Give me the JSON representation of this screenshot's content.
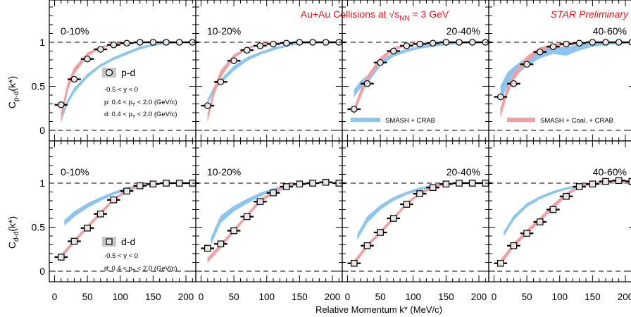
{
  "header": {
    "title_prefix": "Au+Au Collisions at ",
    "title_sqrt_s": "√s",
    "title_sub": "NN",
    "title_suffix": " = 3 GeV",
    "preliminary": "STAR Preliminary"
  },
  "axes": {
    "xlabel": "Relative Momentum k* (MeV/c)",
    "xticks": [
      "0",
      "50",
      "100",
      "150",
      "200"
    ],
    "row_ylabels": [
      {
        "main": "C",
        "sub": "p-d",
        "tail": "(k*)"
      },
      {
        "main": "C",
        "sub": "d-d",
        "tail": "(k*)"
      }
    ],
    "yticks": [
      "0",
      "0.5",
      "1"
    ]
  },
  "legend": {
    "pd": {
      "label": "p-d",
      "cut_y": "-0.5 < y < 0",
      "cut_p_a": "p: 0.4 < p",
      "cut_p_sub": "T",
      "cut_p_b": " < 2.0 (GeV/c)",
      "cut_d_a": "d: 0.4 < p",
      "cut_d_sub": "T",
      "cut_d_b": " < 2.0 (GeV/c)"
    },
    "dd": {
      "label": "d-d",
      "cut_y": "-0.5 < y < 0",
      "cut_d_a": "d: 0.4 < p",
      "cut_d_sub": "T",
      "cut_d_b": " < 2.0 (GeV/c)"
    },
    "model_blue": "SMASH + CRAB",
    "model_red": "SMASH + Coal. + CRAB"
  },
  "chart_data": {
    "type": "scatter",
    "xlim": [
      -8,
      215
    ],
    "ylim": [
      -0.12,
      1.48
    ],
    "grid": false,
    "reference_lines": [
      0,
      1
    ],
    "colors": {
      "smash_crab": "#8ec5ee",
      "smash_coal_crab": "#f0a0a0",
      "title": "#e8141b"
    },
    "panels": [
      {
        "row": "p-d",
        "centrality": "0-10%",
        "data_x": [
          10,
          30,
          50,
          70,
          90,
          110,
          130,
          150,
          170,
          190,
          210
        ],
        "data_y": [
          0.29,
          0.58,
          0.81,
          0.92,
          0.97,
          0.99,
          1.0,
          1.0,
          1.0,
          1.0,
          1.0
        ],
        "blue_x": [
          10,
          20,
          30,
          50,
          70,
          90,
          110,
          130,
          150,
          170,
          190,
          210
        ],
        "blue_lo": [
          0.1,
          0.3,
          0.43,
          0.6,
          0.72,
          0.8,
          0.86,
          0.92,
          0.96,
          0.98,
          0.99,
          0.99
        ],
        "blue_hi": [
          0.14,
          0.35,
          0.48,
          0.64,
          0.75,
          0.83,
          0.89,
          0.95,
          0.98,
          1.0,
          1.0,
          1.0
        ],
        "red_x": [
          10,
          20,
          30,
          50,
          70,
          90,
          110,
          130,
          150,
          170,
          190,
          210
        ],
        "red_lo": [
          0.1,
          0.45,
          0.64,
          0.84,
          0.93,
          0.97,
          0.98,
          0.99,
          0.99,
          0.99,
          0.99,
          0.99
        ],
        "red_hi": [
          0.2,
          0.54,
          0.71,
          0.88,
          0.95,
          0.99,
          1.0,
          1.0,
          1.0,
          1.0,
          1.0,
          1.0
        ]
      },
      {
        "row": "p-d",
        "centrality": "10-20%",
        "data_x": [
          10,
          30,
          50,
          70,
          90,
          110,
          130,
          150,
          170,
          190,
          210
        ],
        "data_y": [
          0.28,
          0.55,
          0.79,
          0.91,
          0.96,
          0.98,
          0.99,
          1.0,
          1.0,
          1.0,
          1.0
        ],
        "blue_x": [
          10,
          20,
          30,
          50,
          70,
          90,
          110,
          130,
          150,
          170,
          190,
          210
        ],
        "blue_lo": [
          0.3,
          0.45,
          0.53,
          0.68,
          0.79,
          0.86,
          0.91,
          0.95,
          0.98,
          0.99,
          1.0,
          1.0
        ],
        "blue_hi": [
          0.35,
          0.5,
          0.58,
          0.73,
          0.83,
          0.89,
          0.94,
          0.97,
          0.99,
          1.0,
          1.0,
          1.0
        ],
        "red_x": [
          10,
          20,
          30,
          50,
          70,
          90,
          110,
          130,
          150,
          170,
          190,
          210
        ],
        "red_lo": [
          0.1,
          0.4,
          0.6,
          0.82,
          0.92,
          0.97,
          0.98,
          0.99,
          0.99,
          0.99,
          0.99,
          0.99
        ],
        "red_hi": [
          0.18,
          0.49,
          0.68,
          0.86,
          0.94,
          0.99,
          1.0,
          1.0,
          1.0,
          1.0,
          1.0,
          1.0
        ]
      },
      {
        "row": "p-d",
        "centrality": "20-40%",
        "data_x": [
          10,
          30,
          50,
          70,
          90,
          110,
          130,
          150,
          170,
          190,
          210
        ],
        "data_y": [
          0.24,
          0.53,
          0.77,
          0.9,
          0.96,
          0.98,
          0.99,
          1.0,
          1.0,
          1.0,
          1.0
        ],
        "blue_x": [
          10,
          20,
          30,
          50,
          70,
          90,
          110,
          130,
          150,
          170,
          190,
          210
        ],
        "blue_lo": [
          0.38,
          0.48,
          0.53,
          0.73,
          0.84,
          0.89,
          0.93,
          0.95,
          0.97,
          0.98,
          0.99,
          0.99
        ],
        "blue_hi": [
          0.46,
          0.56,
          0.62,
          0.79,
          0.88,
          0.92,
          0.96,
          0.98,
          0.99,
          1.0,
          1.0,
          1.0
        ],
        "red_x": [
          10,
          20,
          30,
          50,
          70,
          90,
          110,
          130,
          150,
          170,
          190,
          210
        ],
        "red_lo": [
          0.18,
          0.38,
          0.55,
          0.78,
          0.91,
          0.96,
          0.98,
          0.99,
          0.99,
          0.99,
          0.99,
          0.99
        ],
        "red_hi": [
          0.25,
          0.46,
          0.62,
          0.83,
          0.94,
          0.98,
          1.0,
          1.0,
          1.0,
          1.0,
          1.0,
          1.0
        ]
      },
      {
        "row": "p-d",
        "centrality": "40-60%",
        "data_x": [
          10,
          30,
          50,
          70,
          90,
          110,
          130,
          150,
          170,
          190,
          210
        ],
        "data_y": [
          0.38,
          0.53,
          0.75,
          0.89,
          0.95,
          0.98,
          0.99,
          1.0,
          1.0,
          1.0,
          1.0
        ],
        "blue_x": [
          10,
          20,
          30,
          50,
          70,
          90,
          110,
          130,
          150,
          170,
          190,
          210
        ],
        "blue_lo": [
          0.33,
          0.5,
          0.6,
          0.73,
          0.82,
          0.87,
          0.85,
          0.91,
          0.95,
          0.97,
          0.98,
          0.99
        ],
        "blue_hi": [
          0.5,
          0.65,
          0.72,
          0.83,
          0.9,
          0.95,
          0.94,
          0.98,
          1.0,
          1.0,
          1.0,
          1.0
        ],
        "red_x": [
          10,
          20,
          30,
          50,
          70,
          90,
          110,
          130,
          150,
          170,
          190,
          210
        ],
        "red_lo": [
          0.15,
          0.4,
          0.57,
          0.78,
          0.9,
          0.95,
          0.97,
          0.98,
          0.99,
          0.99,
          0.99,
          0.99
        ],
        "red_hi": [
          0.25,
          0.49,
          0.65,
          0.84,
          0.94,
          0.98,
          1.0,
          1.0,
          1.0,
          1.0,
          1.0,
          1.0
        ]
      },
      {
        "row": "d-d",
        "centrality": "0-10%",
        "data_x": [
          10,
          30,
          50,
          70,
          90,
          110,
          130,
          150,
          170,
          190,
          210
        ],
        "data_y": [
          0.16,
          0.34,
          0.49,
          0.65,
          0.81,
          0.91,
          0.97,
          0.99,
          1.0,
          1.0,
          1.0
        ],
        "blue_x": [
          15,
          30,
          50,
          70,
          90,
          110,
          130,
          150,
          170,
          190,
          210
        ],
        "blue_lo": [
          0.52,
          0.62,
          0.72,
          0.8,
          0.87,
          0.92,
          0.96,
          0.98,
          0.99,
          1.0,
          1.0
        ],
        "blue_hi": [
          0.58,
          0.68,
          0.77,
          0.84,
          0.9,
          0.95,
          0.98,
          1.0,
          1.01,
          1.01,
          1.01
        ],
        "red_x": [
          10,
          30,
          50,
          70,
          90,
          110,
          130,
          150,
          170,
          190,
          210
        ],
        "red_lo": [
          0.14,
          0.32,
          0.48,
          0.64,
          0.8,
          0.9,
          0.96,
          0.99,
          1.0,
          1.0,
          1.0
        ],
        "red_hi": [
          0.19,
          0.36,
          0.52,
          0.68,
          0.83,
          0.93,
          0.98,
          1.0,
          1.01,
          1.01,
          1.01
        ]
      },
      {
        "row": "d-d",
        "centrality": "10-20%",
        "data_x": [
          10,
          30,
          50,
          70,
          90,
          110,
          130,
          150,
          170,
          190,
          210
        ],
        "data_y": [
          0.26,
          0.31,
          0.46,
          0.62,
          0.79,
          0.89,
          0.96,
          0.99,
          1.0,
          1.01,
          1.0
        ],
        "blue_x": [
          15,
          30,
          50,
          70,
          90,
          110,
          130,
          150,
          170,
          190,
          210
        ],
        "blue_lo": [
          0.3,
          0.55,
          0.68,
          0.77,
          0.85,
          0.91,
          0.95,
          0.98,
          0.99,
          1.0,
          1.0
        ],
        "blue_hi": [
          0.38,
          0.63,
          0.74,
          0.82,
          0.89,
          0.94,
          0.98,
          1.0,
          1.01,
          1.01,
          1.01
        ],
        "red_x": [
          10,
          30,
          50,
          70,
          90,
          110,
          130,
          150,
          170,
          190,
          210
        ],
        "red_lo": [
          0.1,
          0.26,
          0.44,
          0.61,
          0.78,
          0.88,
          0.95,
          0.99,
          1.0,
          1.0,
          1.0
        ],
        "red_hi": [
          0.15,
          0.31,
          0.48,
          0.65,
          0.82,
          0.91,
          0.98,
          1.0,
          1.01,
          1.01,
          1.01
        ]
      },
      {
        "row": "d-d",
        "centrality": "20-40%",
        "data_x": [
          10,
          30,
          50,
          70,
          90,
          110,
          130,
          150,
          170,
          190,
          210
        ],
        "data_y": [
          0.09,
          0.29,
          0.44,
          0.6,
          0.76,
          0.88,
          0.95,
          0.99,
          1.0,
          1.0,
          1.0
        ],
        "blue_x": [
          15,
          30,
          50,
          70,
          90,
          110,
          130,
          150,
          170,
          190,
          210
        ],
        "blue_lo": [
          0.36,
          0.55,
          0.7,
          0.8,
          0.87,
          0.92,
          0.96,
          0.98,
          0.99,
          1.0,
          1.0
        ],
        "blue_hi": [
          0.42,
          0.62,
          0.75,
          0.84,
          0.9,
          0.95,
          0.98,
          1.0,
          1.01,
          1.01,
          1.01
        ],
        "red_x": [
          10,
          30,
          50,
          70,
          90,
          110,
          130,
          150,
          170,
          190,
          210
        ],
        "red_lo": [
          0.07,
          0.27,
          0.42,
          0.58,
          0.75,
          0.87,
          0.94,
          0.99,
          1.0,
          1.0,
          1.0
        ],
        "red_hi": [
          0.12,
          0.31,
          0.46,
          0.62,
          0.78,
          0.9,
          0.97,
          1.0,
          1.01,
          1.01,
          1.01
        ]
      },
      {
        "row": "d-d",
        "centrality": "40-60%",
        "data_x": [
          10,
          30,
          50,
          70,
          90,
          110,
          130,
          150,
          170,
          190,
          210
        ],
        "data_y": [
          0.09,
          0.29,
          0.43,
          0.56,
          0.7,
          0.85,
          0.96,
          0.99,
          1.02,
          1.03,
          1.02
        ],
        "blue_x": [
          15,
          30,
          50,
          70,
          90,
          110,
          130,
          150,
          170,
          190,
          210
        ],
        "blue_lo": [
          0.4,
          0.58,
          0.73,
          0.82,
          0.88,
          0.93,
          0.96,
          0.98,
          0.99,
          1.0,
          1.0
        ],
        "blue_hi": [
          0.45,
          0.63,
          0.77,
          0.85,
          0.91,
          0.95,
          0.98,
          1.0,
          1.01,
          1.01,
          1.01
        ],
        "red_x": [
          10,
          30,
          50,
          70,
          90,
          110,
          130,
          150,
          170,
          190,
          210
        ],
        "red_lo": [
          0.07,
          0.27,
          0.42,
          0.56,
          0.71,
          0.85,
          0.95,
          0.99,
          1.0,
          1.01,
          1.0
        ],
        "red_hi": [
          0.13,
          0.32,
          0.47,
          0.61,
          0.76,
          0.89,
          0.98,
          1.01,
          1.03,
          1.04,
          1.03
        ]
      }
    ]
  }
}
